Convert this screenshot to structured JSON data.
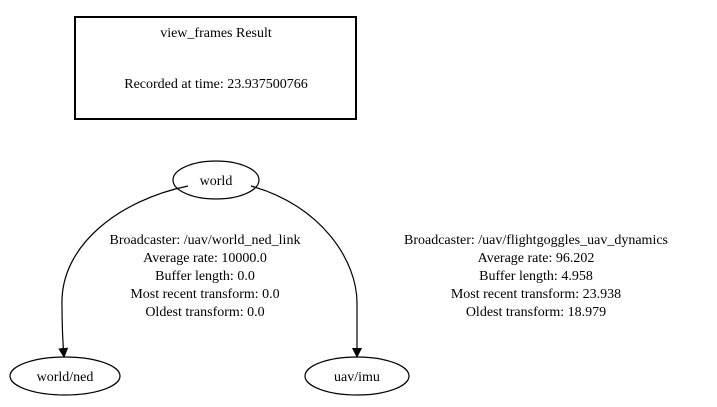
{
  "header_box": {
    "title": "view_frames Result",
    "recorded_at": "Recorded at time: 23.937500766"
  },
  "nodes": {
    "world": "world",
    "world_ned": "world/ned",
    "uav_imu": "uav/imu"
  },
  "edges": {
    "world_to_ned": {
      "broadcaster": "Broadcaster: /uav/world_ned_link",
      "average_rate": "Average rate: 10000.0",
      "buffer_length": "Buffer length: 0.0",
      "most_recent_transform": "Most recent transform: 0.0",
      "oldest_transform": "Oldest transform: 0.0"
    },
    "world_to_imu": {
      "broadcaster": "Broadcaster: /uav/flightgoggles_uav_dynamics",
      "average_rate": "Average rate: 96.202",
      "buffer_length": "Buffer length: 4.958",
      "most_recent_transform": "Most recent transform: 23.938",
      "oldest_transform": "Oldest transform: 18.979"
    }
  },
  "colors": {
    "stroke": "#000000",
    "background": "#ffffff"
  }
}
